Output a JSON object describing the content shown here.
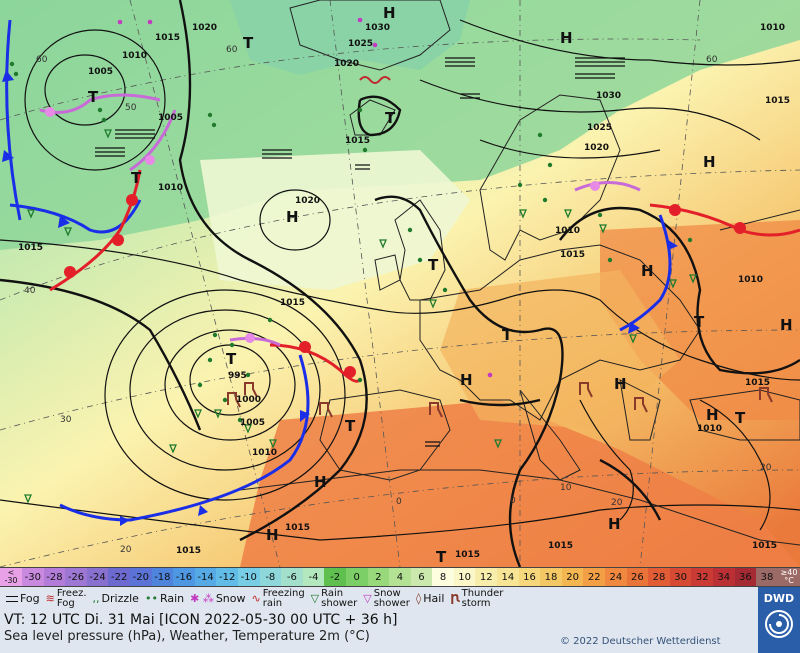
{
  "map": {
    "pressure_labels": [
      {
        "text": "1020",
        "c": "pl1"
      },
      {
        "text": "1015",
        "c": "pl2"
      },
      {
        "text": "1010",
        "c": "pl3"
      },
      {
        "text": "1005",
        "c": "pl4"
      },
      {
        "text": "1005",
        "c": "pl5"
      },
      {
        "text": "1010",
        "c": "pl6"
      },
      {
        "text": "1015",
        "c": "pl7"
      },
      {
        "text": "1020",
        "c": "pl8"
      },
      {
        "text": "1015",
        "c": "pl9"
      },
      {
        "text": "995",
        "c": "pl10"
      },
      {
        "text": "1000",
        "c": "pl11"
      },
      {
        "text": "1005",
        "c": "pl12"
      },
      {
        "text": "1010",
        "c": "pl13"
      },
      {
        "text": "1015",
        "c": "pl14"
      },
      {
        "text": "1015",
        "c": "pl15"
      },
      {
        "text": "1030",
        "c": "pl16"
      },
      {
        "text": "1025",
        "c": "pl17"
      },
      {
        "text": "1020",
        "c": "pl18"
      },
      {
        "text": "1030",
        "c": "pl19"
      },
      {
        "text": "1025",
        "c": "pl20"
      },
      {
        "text": "1020",
        "c": "pl21"
      },
      {
        "text": "1015",
        "c": "pl22"
      },
      {
        "text": "1010",
        "c": "pl23"
      },
      {
        "text": "1015",
        "c": "pl24"
      },
      {
        "text": "1010",
        "c": "pl25"
      },
      {
        "text": "1015",
        "c": "pl26"
      },
      {
        "text": "1010",
        "c": "pl27"
      },
      {
        "text": "1015",
        "c": "pl28"
      },
      {
        "text": "1010",
        "c": "pl29"
      },
      {
        "text": "1015",
        "c": "pl30"
      },
      {
        "text": "1015",
        "c": "pl31"
      },
      {
        "text": "1015",
        "c": "pl32"
      }
    ],
    "pressure_centers": [
      {
        "text": "H",
        "c": "h1"
      },
      {
        "text": "H",
        "c": "h2"
      },
      {
        "text": "H",
        "c": "h3"
      },
      {
        "text": "H",
        "c": "h4"
      },
      {
        "text": "H",
        "c": "h5"
      },
      {
        "text": "H",
        "c": "h6"
      },
      {
        "text": "H",
        "c": "h7"
      },
      {
        "text": "H",
        "c": "h8"
      },
      {
        "text": "H",
        "c": "h9"
      },
      {
        "text": "H",
        "c": "h10"
      },
      {
        "text": "H",
        "c": "h11"
      },
      {
        "text": "H",
        "c": "h12"
      },
      {
        "text": "T",
        "c": "t1"
      },
      {
        "text": "T",
        "c": "t2"
      },
      {
        "text": "T",
        "c": "t3"
      },
      {
        "text": "T",
        "c": "t4"
      },
      {
        "text": "T",
        "c": "t5"
      },
      {
        "text": "T",
        "c": "t6"
      },
      {
        "text": "T",
        "c": "t7"
      },
      {
        "text": "T",
        "c": "t8"
      },
      {
        "text": "T",
        "c": "t9"
      },
      {
        "text": "T",
        "c": "t10"
      },
      {
        "text": "T",
        "c": "t11"
      }
    ],
    "graticule_labels": [
      {
        "text": "60",
        "c": "g1"
      },
      {
        "text": "60",
        "c": "g2"
      },
      {
        "text": "50",
        "c": "g3"
      },
      {
        "text": "40",
        "c": "g4"
      },
      {
        "text": "30",
        "c": "g5"
      },
      {
        "text": "20",
        "c": "g6"
      },
      {
        "text": "60",
        "c": "g7"
      },
      {
        "text": "20",
        "c": "g8"
      },
      {
        "text": "0",
        "c": "g9"
      },
      {
        "text": "0",
        "c": "g10"
      },
      {
        "text": "10",
        "c": "g11"
      },
      {
        "text": "20",
        "c": "g12"
      }
    ]
  },
  "scale": {
    "first_top": "<",
    "first_bottom": "-30",
    "values": [
      "-30",
      "-28",
      "-26",
      "-24",
      "-22",
      "-20",
      "-18",
      "-16",
      "-14",
      "-12",
      "-10",
      "-8",
      "-6",
      "-4",
      "-2",
      "0",
      "2",
      "4",
      "6",
      "8",
      "10",
      "12",
      "14",
      "16",
      "18",
      "20",
      "22",
      "24",
      "26",
      "28",
      "30",
      "32",
      "34",
      "36",
      "38"
    ],
    "last_top": "≥40",
    "last_bottom": "°C",
    "colors": [
      "#e8a0e6",
      "#c889de",
      "#b27cd8",
      "#9e76d4",
      "#8870cf",
      "#6c6ad0",
      "#5b73d6",
      "#4f84dd",
      "#4e97e2",
      "#55aae6",
      "#62bce8",
      "#78cde6",
      "#8ed8dc",
      "#a2e0cc",
      "#b3e7be",
      "#5fc04f",
      "#7bcf66",
      "#98d97c",
      "#b3e294",
      "#cbe9ac",
      "#fdfde0",
      "#fbf7c8",
      "#f8eeac",
      "#f7e494",
      "#f6d77c",
      "#f5c866",
      "#f4b651",
      "#f39f45",
      "#f0893f",
      "#ea733a",
      "#e25d36",
      "#d64a34",
      "#c93b34",
      "#ba3034",
      "#a52a33",
      "#9c6a66"
    ]
  },
  "legend": {
    "fog": "Fog",
    "freez_fog_1": "Freez.",
    "freez_fog_2": "Fog",
    "drizzle": "Drizzle",
    "rain": "Rain",
    "snow": "Snow",
    "freezing_rain_1": "Freezing",
    "freezing_rain_2": "rain",
    "rain_shower_1": "Rain",
    "rain_shower_2": "shower",
    "snow_shower_1": "Snow",
    "snow_shower_2": "shower",
    "hail": "Hail",
    "thunderstorm_1": "Thunder",
    "thunderstorm_2": "storm"
  },
  "info": {
    "valid_time": "VT: 12 UTC Di.   31 Mai [ICON 2022-05-30   00 UTC + 36 h]",
    "description": "Sea level pressure (hPa), Weather, Temperature 2m (°C)",
    "copyright": "© 2022 Deutscher Wetterdienst"
  },
  "logo": {
    "text": "DWD"
  }
}
